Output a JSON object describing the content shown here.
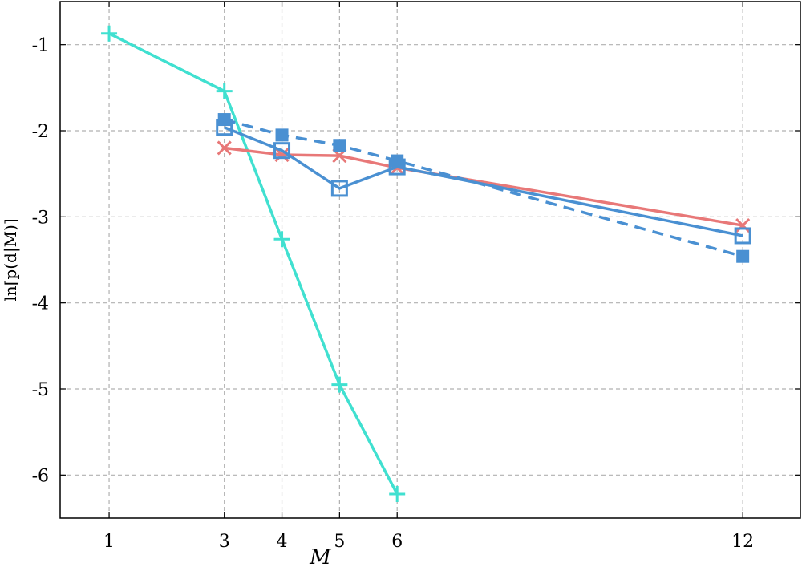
{
  "chart_data": {
    "type": "line",
    "xlabel": "M",
    "ylabel": "ln[p(d|M)]",
    "x_ticks": [
      1,
      3,
      4,
      5,
      6,
      12
    ],
    "y_ticks": [
      -6,
      -5,
      -4,
      -3,
      -2,
      -1
    ],
    "y_tick_labels": [
      "-6",
      "-5",
      "-4",
      "-3",
      "-2",
      "-1"
    ],
    "xlim": [
      0.15,
      13.0
    ],
    "ylim": [
      -6.5,
      -0.5
    ],
    "grid": true,
    "series": [
      {
        "color": "#40e0d0",
        "marker": "plus",
        "line": "solid",
        "filled": false,
        "x": [
          1,
          3,
          4,
          5,
          6
        ],
        "y": [
          -0.87,
          -1.54,
          -3.26,
          -4.95,
          -6.22
        ]
      },
      {
        "color": "#e87878",
        "marker": "x",
        "line": "solid",
        "filled": false,
        "x": [
          3,
          4,
          5,
          6,
          12
        ],
        "y": [
          -2.2,
          -2.28,
          -2.29,
          -2.43,
          -3.1
        ]
      },
      {
        "color": "#4a90d2",
        "marker": "square",
        "line": "solid",
        "filled": false,
        "x": [
          3,
          4,
          5,
          6,
          12
        ],
        "y": [
          -1.96,
          -2.23,
          -2.67,
          -2.42,
          -3.22
        ]
      },
      {
        "color": "#4a90d2",
        "marker": "square",
        "line": "dashed",
        "filled": true,
        "x": [
          3,
          4,
          5,
          6,
          12
        ],
        "y": [
          -1.87,
          -2.05,
          -2.17,
          -2.35,
          -3.46
        ]
      }
    ]
  }
}
